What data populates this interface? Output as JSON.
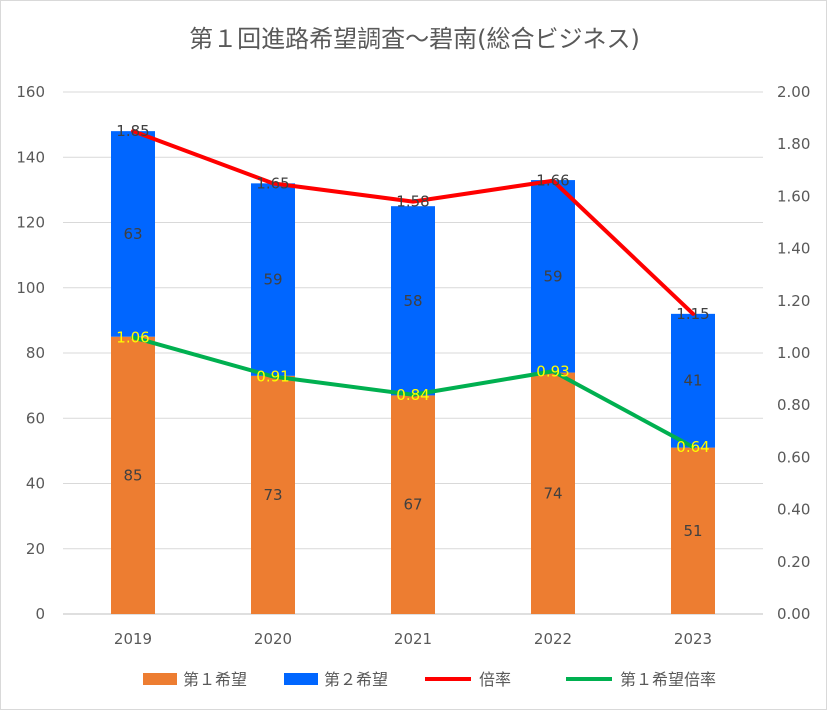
{
  "chart_data": {
    "type": "bar",
    "stacked": true,
    "title": "第１回進路希望調査～碧南(総合ビジネス)",
    "categories": [
      "2019",
      "2020",
      "2021",
      "2022",
      "2023"
    ],
    "series": [
      {
        "name": "第１希望",
        "kind": "bar",
        "axis": "left",
        "color": "#ed7d31",
        "values": [
          85,
          73,
          67,
          74,
          51
        ]
      },
      {
        "name": "第２希望",
        "kind": "bar",
        "axis": "left",
        "color": "#0066ff",
        "values": [
          63,
          59,
          58,
          59,
          41
        ]
      },
      {
        "name": "倍率",
        "kind": "line",
        "axis": "right",
        "color": "#ff0000",
        "values": [
          1.85,
          1.65,
          1.58,
          1.66,
          1.15
        ]
      },
      {
        "name": "第１希望倍率",
        "kind": "line",
        "axis": "right",
        "color": "#00b050",
        "values": [
          1.06,
          0.91,
          0.84,
          0.93,
          0.64
        ]
      }
    ],
    "y_left": {
      "min": 0,
      "max": 160,
      "step": 20,
      "ticks": [
        "0",
        "20",
        "40",
        "60",
        "80",
        "100",
        "120",
        "140",
        "160"
      ]
    },
    "y_right": {
      "min": 0,
      "max": 2,
      "step": 0.2,
      "ticks": [
        "0.00",
        "0.20",
        "0.40",
        "0.60",
        "0.80",
        "1.00",
        "1.20",
        "1.40",
        "1.60",
        "1.80",
        "2.00"
      ]
    },
    "grid": true,
    "legend_position": "bottom"
  }
}
